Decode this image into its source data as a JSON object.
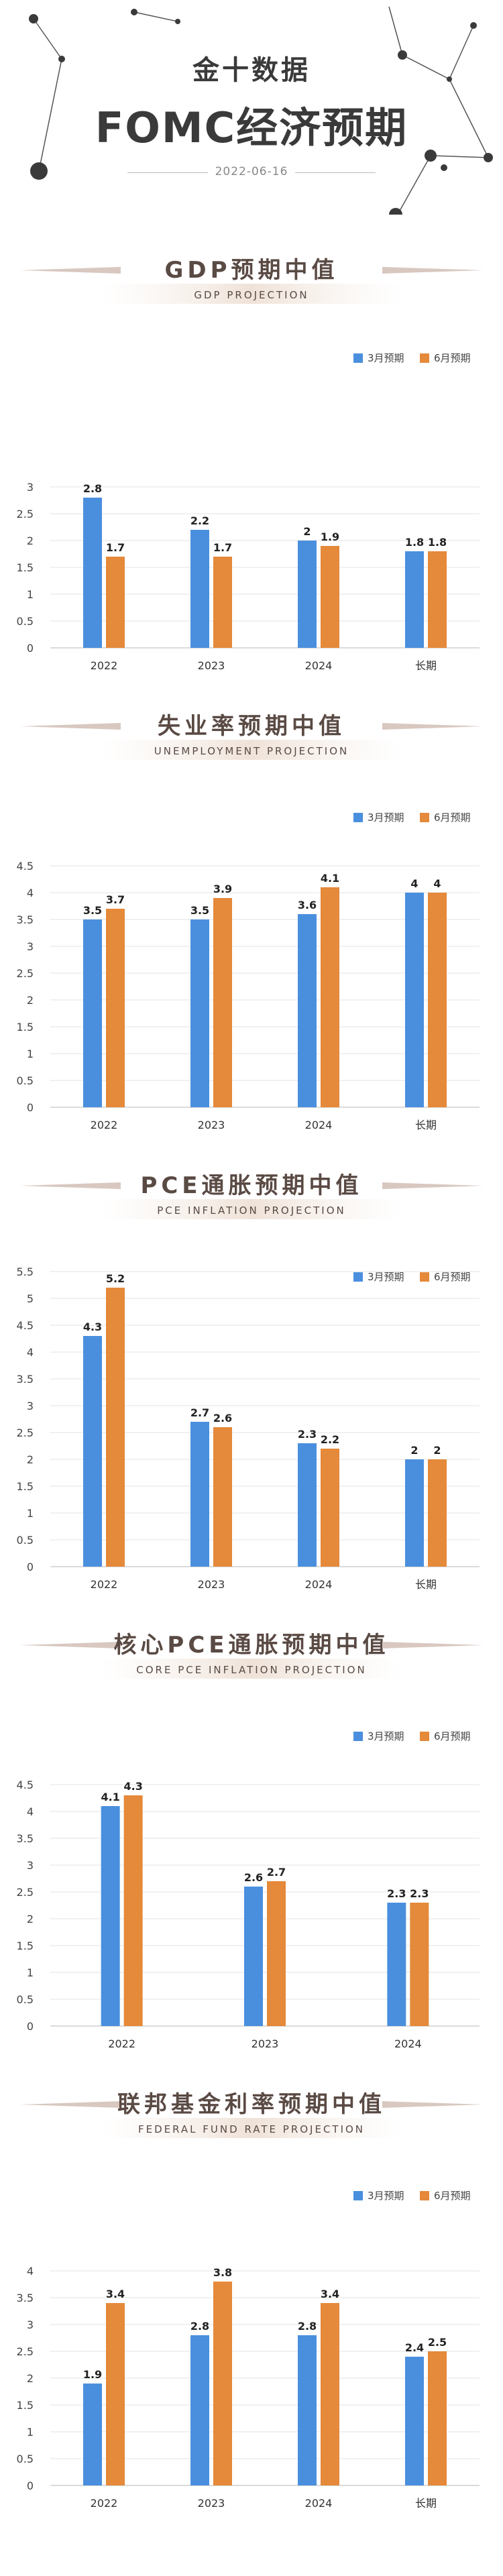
{
  "header": {
    "brand": "金十数据",
    "title": "FOMC经济预期",
    "date": "2022-06-16"
  },
  "legend": {
    "s1": "3月预期",
    "s2": "6月预期"
  },
  "colors": {
    "s1": "#4a8fde",
    "s2": "#e5893a",
    "title": "#5a4a44"
  },
  "chart_data": [
    {
      "type": "bar",
      "title": "GDP预期中值",
      "subtitle": "GDP PROJECTION",
      "categories": [
        "2022",
        "2023",
        "2024",
        "长期"
      ],
      "series": [
        {
          "name": "3月预期",
          "values": [
            2.8,
            2.2,
            2,
            1.8
          ]
        },
        {
          "name": "6月预期",
          "values": [
            1.7,
            1.7,
            1.9,
            1.8
          ]
        }
      ],
      "ylim": [
        0,
        3
      ],
      "yticks": [
        "0",
        "0.5",
        "1",
        "1.5",
        "2",
        "2.5",
        "3"
      ],
      "legend": "top-right"
    },
    {
      "type": "bar",
      "title": "失业率预期中值",
      "subtitle": "UNEMPLOYMENT PROJECTION",
      "categories": [
        "2022",
        "2023",
        "2024",
        "长期"
      ],
      "series": [
        {
          "name": "3月预期",
          "values": [
            3.5,
            3.5,
            3.6,
            4
          ]
        },
        {
          "name": "6月预期",
          "values": [
            3.7,
            3.9,
            4.1,
            4
          ]
        }
      ],
      "ylim": [
        0,
        4.5
      ],
      "yticks": [
        "0",
        "0.5",
        "1",
        "1.5",
        "2",
        "2.5",
        "3",
        "3.5",
        "4",
        "4.5"
      ],
      "legend": "top-right"
    },
    {
      "type": "bar",
      "title": "PCE通胀预期中值",
      "subtitle": "PCE INFLATION PROJECTION",
      "categories": [
        "2022",
        "2023",
        "2024",
        "长期"
      ],
      "series": [
        {
          "name": "3月预期",
          "values": [
            4.3,
            2.7,
            2.3,
            2
          ]
        },
        {
          "name": "6月预期",
          "values": [
            5.2,
            2.6,
            2.2,
            2
          ]
        }
      ],
      "ylim": [
        0,
        5.5
      ],
      "yticks": [
        "0",
        "0.5",
        "1",
        "1.5",
        "2",
        "2.5",
        "3",
        "3.5",
        "4",
        "4.5",
        "5",
        "5.5"
      ],
      "legend": "top-right"
    },
    {
      "type": "bar",
      "title": "核心PCE通胀预期中值",
      "subtitle": "CORE PCE INFLATION PROJECTION",
      "categories": [
        "2022",
        "2023",
        "2024"
      ],
      "series": [
        {
          "name": "3月预期",
          "values": [
            4.1,
            2.6,
            2.3
          ]
        },
        {
          "name": "6月预期",
          "values": [
            4.3,
            2.7,
            2.3
          ]
        }
      ],
      "ylim": [
        0,
        4.5
      ],
      "yticks": [
        "0",
        "0.5",
        "1",
        "1.5",
        "2",
        "2.5",
        "3",
        "3.5",
        "4",
        "4.5"
      ],
      "legend": "top-right"
    },
    {
      "type": "bar",
      "title": "联邦基金利率预期中值",
      "subtitle": "FEDERAL FUND RATE PROJECTION",
      "categories": [
        "2022",
        "2023",
        "2024",
        "长期"
      ],
      "series": [
        {
          "name": "3月预期",
          "values": [
            1.9,
            2.8,
            2.8,
            2.4
          ]
        },
        {
          "name": "6月预期",
          "values": [
            3.4,
            3.8,
            3.4,
            2.5
          ]
        }
      ],
      "ylim": [
        0,
        4
      ],
      "yticks": [
        "0",
        "0.5",
        "1",
        "1.5",
        "2",
        "2.5",
        "3",
        "3.5",
        "4"
      ],
      "legend": "top-right"
    }
  ]
}
